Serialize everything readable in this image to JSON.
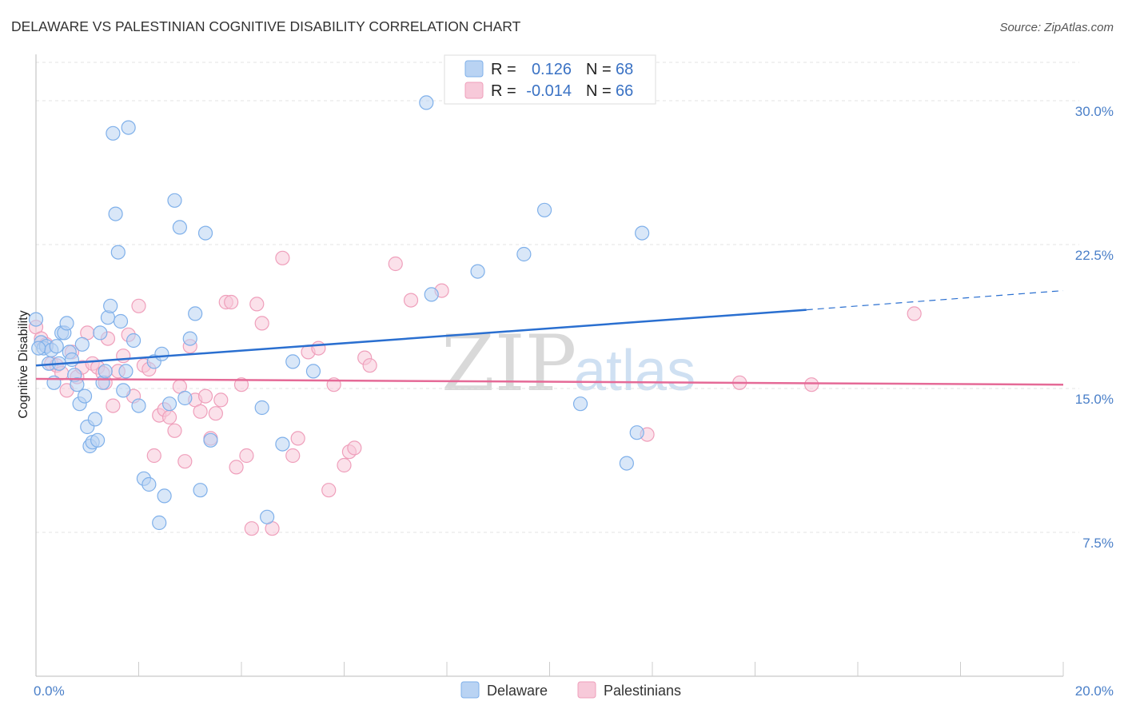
{
  "chart_data": {
    "type": "scatter",
    "title": "DELAWARE VS PALESTINIAN COGNITIVE DISABILITY CORRELATION CHART",
    "source": "Source: ZipAtlas.com",
    "xlabel": "",
    "ylabel": "Cognitive Disability",
    "xlim": [
      0,
      20
    ],
    "ylim": [
      0,
      32
    ],
    "x_ticks": [
      {
        "value": 0,
        "label": "0.0%"
      },
      {
        "value": 20,
        "label": "20.0%"
      }
    ],
    "y_ticks": [
      {
        "value": 7.5,
        "label": "7.5%"
      },
      {
        "value": 15.0,
        "label": "15.0%"
      },
      {
        "value": 22.5,
        "label": "22.5%"
      },
      {
        "value": 30.0,
        "label": "30.0%"
      }
    ],
    "watermark": {
      "zip": "ZIP",
      "atlas": "atlas"
    },
    "legend_top": [
      {
        "r_label": "R =",
        "r_value": "0.126",
        "n_label": "N =",
        "n_value": "68"
      },
      {
        "r_label": "R =",
        "r_value": "-0.014",
        "n_label": "N =",
        "n_value": "66"
      }
    ],
    "series": [
      {
        "name": "Delaware",
        "color": "#7fb0ea",
        "fill": "#b9d3f3",
        "line_color": "#2a6fd0",
        "trend": {
          "x0": 0,
          "y0": 16.2,
          "x1": 15,
          "y1": 19.1,
          "dash_to_x": 20,
          "dash_to_y": 20.1
        },
        "points": [
          [
            0.0,
            18.6
          ],
          [
            0.1,
            17.4
          ],
          [
            0.15,
            17.1
          ],
          [
            0.2,
            17.2
          ],
          [
            0.25,
            16.3
          ],
          [
            0.3,
            17.0
          ],
          [
            0.35,
            15.3
          ],
          [
            0.4,
            17.2
          ],
          [
            0.45,
            16.3
          ],
          [
            0.5,
            17.9
          ],
          [
            0.55,
            17.9
          ],
          [
            0.6,
            18.4
          ],
          [
            0.65,
            16.9
          ],
          [
            0.7,
            16.5
          ],
          [
            0.75,
            15.7
          ],
          [
            0.8,
            15.2
          ],
          [
            0.85,
            14.2
          ],
          [
            0.9,
            17.3
          ],
          [
            0.95,
            14.6
          ],
          [
            1.0,
            13.0
          ],
          [
            1.05,
            12.0
          ],
          [
            1.1,
            12.2
          ],
          [
            1.15,
            13.4
          ],
          [
            1.2,
            12.3
          ],
          [
            1.25,
            17.9
          ],
          [
            1.3,
            15.3
          ],
          [
            1.35,
            15.9
          ],
          [
            1.4,
            18.7
          ],
          [
            1.45,
            19.3
          ],
          [
            1.5,
            28.3
          ],
          [
            1.55,
            24.1
          ],
          [
            1.6,
            22.1
          ],
          [
            1.65,
            18.5
          ],
          [
            1.7,
            14.9
          ],
          [
            1.75,
            15.9
          ],
          [
            1.8,
            28.6
          ],
          [
            1.9,
            17.5
          ],
          [
            2.0,
            14.1
          ],
          [
            2.1,
            10.3
          ],
          [
            2.2,
            10.0
          ],
          [
            2.3,
            16.4
          ],
          [
            2.4,
            8.0
          ],
          [
            2.45,
            16.8
          ],
          [
            2.5,
            9.4
          ],
          [
            2.6,
            14.2
          ],
          [
            2.7,
            24.8
          ],
          [
            2.8,
            23.4
          ],
          [
            2.9,
            14.5
          ],
          [
            3.0,
            17.6
          ],
          [
            3.1,
            18.9
          ],
          [
            3.2,
            9.7
          ],
          [
            3.3,
            23.1
          ],
          [
            3.4,
            12.3
          ],
          [
            4.4,
            14.0
          ],
          [
            4.5,
            8.3
          ],
          [
            4.8,
            12.1
          ],
          [
            5.0,
            16.4
          ],
          [
            5.4,
            15.9
          ],
          [
            7.6,
            29.9
          ],
          [
            7.7,
            19.9
          ],
          [
            8.6,
            21.1
          ],
          [
            9.5,
            22.0
          ],
          [
            9.9,
            24.3
          ],
          [
            10.6,
            14.2
          ],
          [
            11.5,
            11.1
          ],
          [
            11.7,
            12.7
          ],
          [
            11.8,
            23.1
          ],
          [
            0.05,
            17.1
          ]
        ]
      },
      {
        "name": "Palestinians",
        "color": "#ef9fbb",
        "fill": "#f7c9d9",
        "line_color": "#e56a97",
        "trend": {
          "x0": 0,
          "y0": 15.5,
          "x1": 20,
          "y1": 15.2
        },
        "points": [
          [
            0.0,
            18.2
          ],
          [
            0.1,
            17.6
          ],
          [
            0.2,
            17.3
          ],
          [
            0.3,
            16.3
          ],
          [
            0.4,
            16.2
          ],
          [
            0.5,
            15.8
          ],
          [
            0.6,
            14.9
          ],
          [
            0.7,
            16.9
          ],
          [
            0.8,
            15.6
          ],
          [
            0.9,
            16.1
          ],
          [
            1.0,
            17.9
          ],
          [
            1.1,
            16.3
          ],
          [
            1.2,
            16.1
          ],
          [
            1.3,
            15.8
          ],
          [
            1.35,
            15.3
          ],
          [
            1.4,
            17.6
          ],
          [
            1.5,
            14.1
          ],
          [
            1.6,
            15.9
          ],
          [
            1.7,
            16.7
          ],
          [
            1.8,
            17.8
          ],
          [
            1.9,
            14.6
          ],
          [
            2.0,
            19.3
          ],
          [
            2.1,
            16.2
          ],
          [
            2.2,
            16.0
          ],
          [
            2.3,
            11.5
          ],
          [
            2.4,
            13.6
          ],
          [
            2.5,
            13.9
          ],
          [
            2.6,
            13.5
          ],
          [
            2.7,
            12.8
          ],
          [
            2.8,
            15.1
          ],
          [
            2.9,
            11.2
          ],
          [
            3.0,
            17.2
          ],
          [
            3.1,
            14.4
          ],
          [
            3.2,
            13.8
          ],
          [
            3.3,
            14.6
          ],
          [
            3.4,
            12.4
          ],
          [
            3.5,
            13.7
          ],
          [
            3.6,
            14.4
          ],
          [
            3.7,
            19.5
          ],
          [
            3.8,
            19.5
          ],
          [
            3.9,
            10.9
          ],
          [
            4.0,
            15.2
          ],
          [
            4.1,
            11.5
          ],
          [
            4.2,
            7.7
          ],
          [
            4.3,
            19.4
          ],
          [
            4.4,
            18.4
          ],
          [
            4.6,
            7.7
          ],
          [
            4.8,
            21.8
          ],
          [
            5.0,
            11.5
          ],
          [
            5.1,
            12.4
          ],
          [
            5.3,
            16.9
          ],
          [
            5.5,
            17.1
          ],
          [
            5.7,
            9.7
          ],
          [
            5.8,
            15.2
          ],
          [
            6.0,
            11.0
          ],
          [
            6.1,
            11.7
          ],
          [
            6.2,
            11.9
          ],
          [
            6.4,
            16.6
          ],
          [
            6.5,
            16.2
          ],
          [
            7.0,
            21.5
          ],
          [
            7.3,
            19.6
          ],
          [
            7.9,
            20.1
          ],
          [
            11.9,
            12.6
          ],
          [
            13.7,
            15.3
          ],
          [
            15.1,
            15.2
          ],
          [
            17.1,
            18.9
          ]
        ]
      }
    ]
  }
}
